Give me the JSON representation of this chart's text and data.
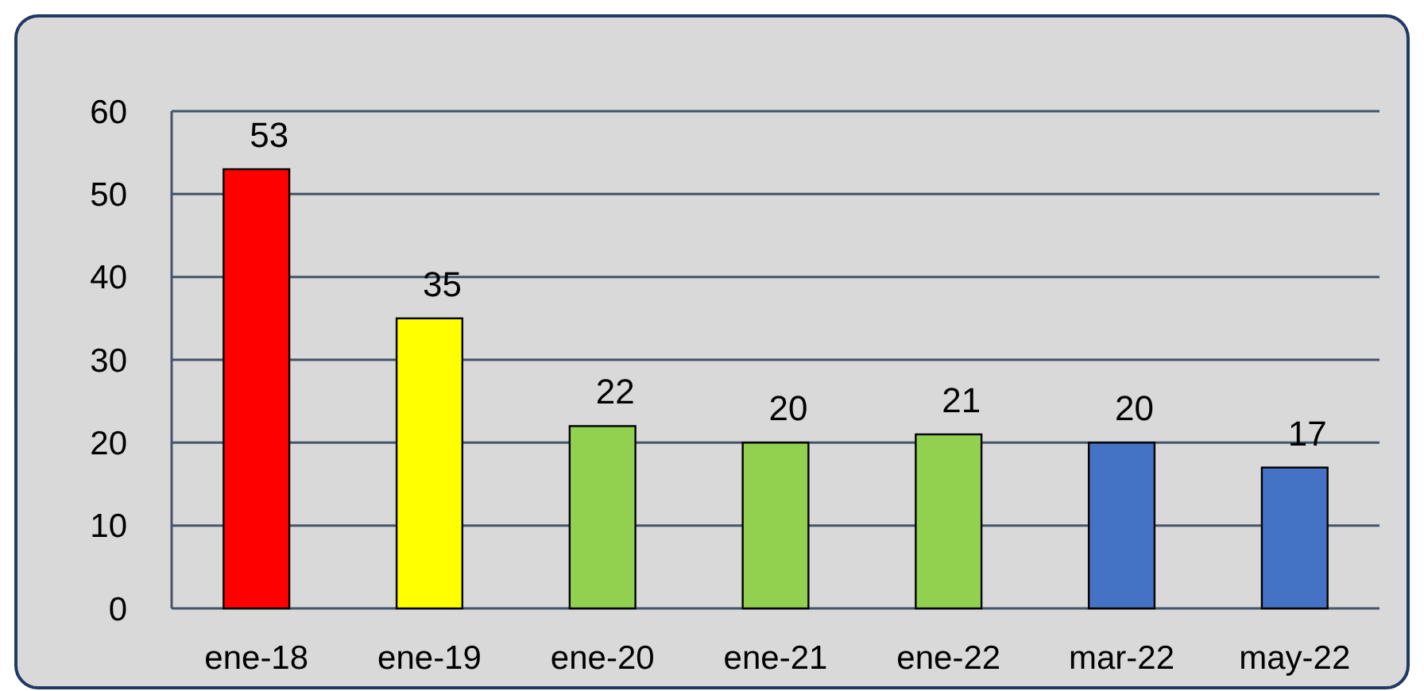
{
  "chart_data": {
    "type": "bar",
    "categories": [
      "ene-18",
      "ene-19",
      "ene-20",
      "ene-21",
      "ene-22",
      "mar-22",
      "may-22"
    ],
    "values": [
      53,
      35,
      22,
      20,
      21,
      20,
      17
    ],
    "colors": [
      "#ff0000",
      "#ffff00",
      "#92d050",
      "#92d050",
      "#92d050",
      "#4472c4",
      "#4472c4"
    ],
    "ylim": [
      0,
      60
    ],
    "yticks": [
      0,
      10,
      20,
      30,
      40,
      50,
      60
    ],
    "grid": "y",
    "data_labels": true
  }
}
